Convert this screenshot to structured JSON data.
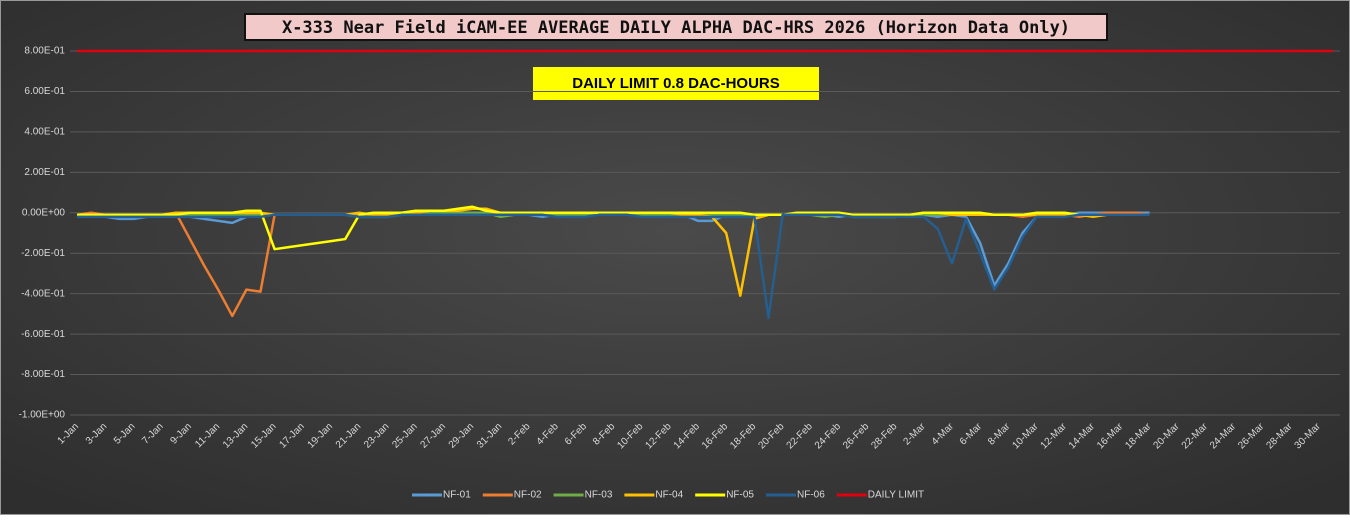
{
  "chart_data": {
    "type": "line",
    "title": "X-333 Near Field iCAM-EE AVERAGE DAILY ALPHA DAC-HRS 2026 (Horizon Data Only)",
    "annotation": "DAILY LIMIT 0.8 DAC-HOURS",
    "categories": [
      "1-Jan",
      null,
      "3-Jan",
      null,
      "5-Jan",
      null,
      "7-Jan",
      null,
      "9-Jan",
      null,
      "11-Jan",
      null,
      "13-Jan",
      null,
      "15-Jan",
      null,
      "17-Jan",
      null,
      "19-Jan",
      null,
      "21-Jan",
      null,
      "23-Jan",
      null,
      "25-Jan",
      null,
      "27-Jan",
      null,
      "29-Jan",
      null,
      "31-Jan",
      null,
      "2-Feb",
      null,
      "4-Feb",
      null,
      "6-Feb",
      null,
      "8-Feb",
      null,
      "10-Feb",
      null,
      "12-Feb",
      null,
      "14-Feb",
      null,
      "16-Feb",
      null,
      "18-Feb",
      null,
      "20-Feb",
      null,
      "22-Feb",
      null,
      "24-Feb",
      null,
      "26-Feb",
      null,
      "28-Feb",
      null,
      "2-Mar",
      null,
      "4-Mar",
      null,
      "6-Mar",
      null,
      "8-Mar",
      null,
      "10-Mar",
      null,
      "12-Mar",
      null,
      "14-Mar",
      null,
      "16-Mar",
      null,
      "18-Mar",
      null,
      "20-Mar",
      null,
      "22-Mar",
      null,
      "24-Mar",
      null,
      "26-Mar",
      null,
      "28-Mar",
      null,
      "30-Mar",
      null
    ],
    "ylim": [
      -1,
      0.8
    ],
    "yticks": [
      {
        "value": -1,
        "label": "-1.00E+00"
      },
      {
        "value": -0.8,
        "label": "-8.00E-01"
      },
      {
        "value": -0.6,
        "label": "-6.00E-01"
      },
      {
        "value": -0.4,
        "label": "-4.00E-01"
      },
      {
        "value": -0.2,
        "label": "-2.00E-01"
      },
      {
        "value": 0,
        "label": "0.00E+00"
      },
      {
        "value": 0.2,
        "label": "2.00E-01"
      },
      {
        "value": 0.4,
        "label": "4.00E-01"
      },
      {
        "value": 0.6,
        "label": "6.00E-01"
      },
      {
        "value": 0.8,
        "label": "8.00E-01"
      }
    ],
    "grid": true,
    "series": [
      {
        "name": "NF-01",
        "color": "#5b9bd5",
        "values": [
          -0.01,
          -0.01,
          -0.02,
          -0.03,
          -0.03,
          -0.02,
          -0.01,
          -0.01,
          -0.02,
          -0.03,
          -0.04,
          -0.05,
          -0.02,
          -0.01,
          -0.01,
          -0.01,
          -0.01,
          -0.01,
          -0.01,
          -0.01,
          -0.01,
          -0.02,
          -0.01,
          -0.01,
          0,
          0,
          0,
          0,
          0,
          0,
          -0.01,
          -0.01,
          -0.01,
          -0.02,
          -0.01,
          -0.01,
          -0.01,
          -0.01,
          0,
          0,
          -0.02,
          -0.01,
          -0.01,
          -0.01,
          -0.04,
          -0.04,
          -0.01,
          -0.01,
          -0.02,
          -0.01,
          -0.01,
          -0.01,
          -0.01,
          -0.01,
          -0.02,
          -0.01,
          -0.01,
          -0.02,
          -0.02,
          -0.01,
          -0.01,
          -0.02,
          -0.01,
          -0.02,
          -0.15,
          -0.36,
          -0.25,
          -0.1,
          -0.02,
          -0.01,
          -0.01,
          0,
          0,
          0,
          0,
          0,
          0,
          null,
          null,
          null,
          null,
          null,
          null,
          null,
          null,
          null,
          null,
          null,
          null,
          null
        ]
      },
      {
        "name": "NF-02",
        "color": "#ed7d31",
        "values": [
          -0.01,
          0,
          -0.01,
          -0.01,
          -0.01,
          -0.01,
          -0.01,
          0,
          -0.13,
          -0.26,
          -0.38,
          -0.51,
          -0.38,
          -0.39,
          -0.01,
          -0.01,
          -0.01,
          -0.01,
          -0.01,
          -0.01,
          -0.01,
          -0.01,
          -0.01,
          -0.01,
          0,
          0,
          0,
          0,
          0,
          0,
          -0.01,
          -0.01,
          -0.01,
          -0.01,
          -0.01,
          -0.01,
          -0.01,
          0,
          0,
          0,
          -0.01,
          -0.01,
          -0.01,
          -0.01,
          -0.01,
          -0.01,
          -0.01,
          -0.01,
          -0.01,
          -0.01,
          -0.01,
          -0.01,
          -0.01,
          -0.01,
          -0.01,
          -0.01,
          -0.02,
          -0.01,
          -0.01,
          -0.01,
          -0.01,
          -0.01,
          -0.01,
          -0.01,
          -0.01,
          -0.01,
          -0.01,
          -0.02,
          -0.01,
          -0.01,
          -0.01,
          -0.02,
          -0.01,
          0,
          0,
          0,
          -0.01,
          null,
          null,
          null,
          null,
          null,
          null,
          null,
          null,
          null,
          null,
          null,
          null,
          null
        ]
      },
      {
        "name": "NF-03",
        "color": "#70ad47",
        "values": [
          -0.01,
          -0.01,
          -0.01,
          -0.01,
          -0.02,
          -0.01,
          -0.01,
          -0.01,
          -0.01,
          -0.01,
          -0.01,
          -0.01,
          -0.01,
          -0.01,
          -0.01,
          -0.01,
          -0.01,
          -0.01,
          -0.01,
          -0.01,
          -0.02,
          -0.02,
          -0.02,
          -0.01,
          0,
          0,
          0,
          0,
          0,
          0,
          -0.02,
          -0.01,
          -0.01,
          -0.01,
          -0.01,
          -0.01,
          -0.01,
          0,
          0,
          0,
          -0.01,
          -0.01,
          -0.01,
          -0.01,
          -0.01,
          -0.01,
          -0.01,
          -0.01,
          -0.01,
          -0.01,
          -0.01,
          -0.01,
          -0.01,
          -0.02,
          -0.01,
          -0.02,
          -0.02,
          -0.02,
          -0.02,
          -0.01,
          -0.01,
          -0.01,
          -0.01,
          -0.01,
          -0.01,
          -0.01,
          -0.01,
          -0.01,
          -0.01,
          -0.01,
          -0.01,
          -0.01,
          -0.01,
          -0.01,
          -0.01,
          -0.01,
          -0.01,
          null,
          null,
          null,
          null,
          null,
          null,
          null,
          null,
          null,
          null,
          null,
          null,
          null
        ]
      },
      {
        "name": "NF-04",
        "color": "#ffc000",
        "values": [
          -0.01,
          -0.01,
          -0.01,
          -0.01,
          -0.01,
          -0.01,
          -0.01,
          0,
          0,
          0,
          0,
          0,
          0,
          0,
          -0.01,
          -0.01,
          -0.01,
          -0.01,
          -0.01,
          -0.01,
          0,
          -0.01,
          -0.01,
          0,
          0,
          0.01,
          0.01,
          0.01,
          0.02,
          0.02,
          0,
          0,
          0,
          0,
          0,
          0,
          0,
          0,
          0,
          0,
          0,
          0,
          0,
          -0.01,
          -0.01,
          -0.02,
          -0.1,
          -0.41,
          -0.03,
          -0.01,
          -0.01,
          -0.01,
          -0.01,
          -0.01,
          -0.01,
          -0.01,
          -0.01,
          -0.01,
          -0.01,
          -0.01,
          0,
          0,
          -0.01,
          -0.01,
          -0.01,
          -0.01,
          -0.01,
          -0.01,
          -0.01,
          -0.01,
          -0.01,
          -0.01,
          -0.02,
          -0.01,
          -0.01,
          -0.01,
          -0.01,
          null,
          null,
          null,
          null,
          null,
          null,
          null,
          null,
          null,
          null,
          null,
          null,
          null
        ]
      },
      {
        "name": "NF-05",
        "color": "#ffff00",
        "values": [
          -0.01,
          -0.01,
          -0.01,
          -0.01,
          -0.01,
          -0.01,
          -0.01,
          -0.01,
          0,
          0,
          0,
          0,
          0.01,
          0.01,
          -0.18,
          -0.17,
          -0.16,
          -0.15,
          -0.14,
          -0.13,
          -0.01,
          0,
          0,
          0,
          0.01,
          0.01,
          0.01,
          0.02,
          0.03,
          0.01,
          0,
          0,
          0,
          0,
          0,
          0,
          0,
          0,
          0,
          0,
          0,
          0,
          0,
          0,
          0,
          0,
          0,
          0,
          -0.01,
          -0.01,
          -0.01,
          0,
          0,
          0,
          0,
          -0.01,
          -0.01,
          -0.01,
          -0.01,
          -0.01,
          0,
          0,
          0,
          0,
          0,
          -0.01,
          -0.01,
          -0.01,
          0,
          0,
          0,
          -0.01,
          -0.01,
          -0.01,
          -0.01,
          -0.01,
          -0.01,
          null,
          null,
          null,
          null,
          null,
          null,
          null,
          null,
          null,
          null,
          null,
          null,
          null
        ]
      },
      {
        "name": "NF-06",
        "color": "#255e91",
        "values": [
          -0.02,
          -0.02,
          -0.02,
          -0.02,
          -0.02,
          -0.02,
          -0.02,
          -0.02,
          -0.02,
          -0.02,
          -0.02,
          -0.02,
          -0.02,
          -0.02,
          -0.01,
          -0.01,
          -0.01,
          -0.01,
          -0.01,
          -0.01,
          -0.02,
          -0.02,
          -0.02,
          -0.01,
          -0.01,
          -0.01,
          -0.01,
          -0.01,
          -0.01,
          -0.01,
          -0.01,
          -0.01,
          -0.01,
          -0.01,
          -0.02,
          -0.02,
          -0.02,
          -0.01,
          -0.01,
          -0.01,
          -0.02,
          -0.02,
          -0.02,
          -0.02,
          -0.02,
          -0.02,
          -0.02,
          -0.02,
          -0.02,
          -0.52,
          -0.01,
          -0.01,
          -0.01,
          -0.01,
          -0.01,
          -0.02,
          -0.02,
          -0.02,
          -0.02,
          -0.02,
          -0.02,
          -0.08,
          -0.25,
          -0.03,
          -0.2,
          -0.38,
          -0.27,
          -0.12,
          -0.02,
          -0.02,
          -0.02,
          -0.01,
          -0.01,
          -0.01,
          -0.01,
          -0.01,
          -0.01,
          null,
          null,
          null,
          null,
          null,
          null,
          null,
          null,
          null,
          null,
          null,
          null,
          null
        ]
      },
      {
        "name": "DAILY LIMIT",
        "color": "#e0000f",
        "values": [
          0.8,
          0.8,
          0.8,
          0.8,
          0.8,
          0.8,
          0.8,
          0.8,
          0.8,
          0.8,
          0.8,
          0.8,
          0.8,
          0.8,
          0.8,
          0.8,
          0.8,
          0.8,
          0.8,
          0.8,
          0.8,
          0.8,
          0.8,
          0.8,
          0.8,
          0.8,
          0.8,
          0.8,
          0.8,
          0.8,
          0.8,
          0.8,
          0.8,
          0.8,
          0.8,
          0.8,
          0.8,
          0.8,
          0.8,
          0.8,
          0.8,
          0.8,
          0.8,
          0.8,
          0.8,
          0.8,
          0.8,
          0.8,
          0.8,
          0.8,
          0.8,
          0.8,
          0.8,
          0.8,
          0.8,
          0.8,
          0.8,
          0.8,
          0.8,
          0.8,
          0.8,
          0.8,
          0.8,
          0.8,
          0.8,
          0.8,
          0.8,
          0.8,
          0.8,
          0.8,
          0.8,
          0.8,
          0.8,
          0.8,
          0.8,
          0.8,
          0.8,
          0.8,
          0.8,
          0.8,
          0.8,
          0.8,
          0.8,
          0.8,
          0.8,
          0.8,
          0.8,
          0.8,
          0.8,
          0.8
        ]
      }
    ]
  }
}
